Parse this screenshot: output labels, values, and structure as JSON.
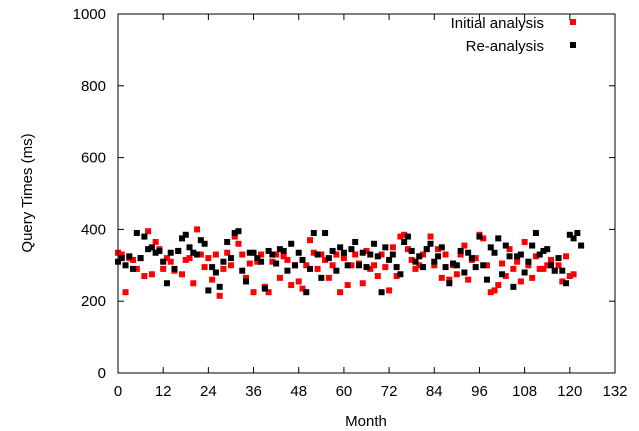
{
  "chart_data": {
    "type": "scatter",
    "xlabel": "Month",
    "ylabel": "Query Times (ms)",
    "xlim": [
      0,
      132
    ],
    "ylim": [
      0,
      1000
    ],
    "xticks": [
      "0",
      "12",
      "24",
      "36",
      "48",
      "60",
      "72",
      "84",
      "96",
      "108",
      "120",
      "132"
    ],
    "yticks": [
      "0",
      "200",
      "400",
      "600",
      "800",
      "1000"
    ],
    "legend_position": "top-right",
    "grid": false,
    "series": [
      {
        "name": "Initial analysis",
        "color": "#ff0000",
        "points": [
          [
            0,
            335
          ],
          [
            1,
            330
          ],
          [
            2,
            225
          ],
          [
            3,
            320
          ],
          [
            4,
            315
          ],
          [
            5,
            290
          ],
          [
            6,
            320
          ],
          [
            7,
            270
          ],
          [
            8,
            395
          ],
          [
            9,
            275
          ],
          [
            10,
            365
          ],
          [
            11,
            345
          ],
          [
            12,
            290
          ],
          [
            13,
            320
          ],
          [
            14,
            310
          ],
          [
            15,
            285
          ],
          [
            16,
            340
          ],
          [
            17,
            275
          ],
          [
            18,
            315
          ],
          [
            19,
            320
          ],
          [
            20,
            250
          ],
          [
            21,
            400
          ],
          [
            22,
            330
          ],
          [
            23,
            295
          ],
          [
            24,
            320
          ],
          [
            25,
            260
          ],
          [
            26,
            330
          ],
          [
            27,
            215
          ],
          [
            28,
            290
          ],
          [
            29,
            335
          ],
          [
            30,
            300
          ],
          [
            31,
            380
          ],
          [
            32,
            360
          ],
          [
            33,
            330
          ],
          [
            34,
            265
          ],
          [
            35,
            305
          ],
          [
            36,
            225
          ],
          [
            37,
            310
          ],
          [
            38,
            330
          ],
          [
            39,
            240
          ],
          [
            40,
            225
          ],
          [
            41,
            310
          ],
          [
            42,
            330
          ],
          [
            43,
            265
          ],
          [
            44,
            325
          ],
          [
            45,
            315
          ],
          [
            46,
            245
          ],
          [
            47,
            300
          ],
          [
            48,
            255
          ],
          [
            49,
            235
          ],
          [
            50,
            300
          ],
          [
            51,
            370
          ],
          [
            52,
            335
          ],
          [
            53,
            290
          ],
          [
            54,
            330
          ],
          [
            55,
            315
          ],
          [
            56,
            265
          ],
          [
            57,
            300
          ],
          [
            58,
            330
          ],
          [
            59,
            225
          ],
          [
            60,
            320
          ],
          [
            61,
            245
          ],
          [
            62,
            300
          ],
          [
            63,
            330
          ],
          [
            64,
            305
          ],
          [
            65,
            250
          ],
          [
            66,
            340
          ],
          [
            67,
            290
          ],
          [
            68,
            300
          ],
          [
            69,
            270
          ],
          [
            70,
            330
          ],
          [
            71,
            295
          ],
          [
            72,
            230
          ],
          [
            73,
            350
          ],
          [
            74,
            270
          ],
          [
            75,
            380
          ],
          [
            76,
            385
          ],
          [
            77,
            345
          ],
          [
            78,
            315
          ],
          [
            79,
            290
          ],
          [
            80,
            300
          ],
          [
            81,
            330
          ],
          [
            82,
            345
          ],
          [
            83,
            380
          ],
          [
            84,
            300
          ],
          [
            85,
            345
          ],
          [
            86,
            265
          ],
          [
            87,
            330
          ],
          [
            88,
            260
          ],
          [
            89,
            300
          ],
          [
            90,
            275
          ],
          [
            91,
            330
          ],
          [
            92,
            355
          ],
          [
            93,
            260
          ],
          [
            94,
            315
          ],
          [
            95,
            320
          ],
          [
            96,
            385
          ],
          [
            97,
            375
          ],
          [
            98,
            300
          ],
          [
            99,
            225
          ],
          [
            100,
            230
          ],
          [
            101,
            245
          ],
          [
            102,
            305
          ],
          [
            103,
            270
          ],
          [
            104,
            345
          ],
          [
            105,
            290
          ],
          [
            106,
            310
          ],
          [
            107,
            255
          ],
          [
            108,
            365
          ],
          [
            109,
            300
          ],
          [
            110,
            265
          ],
          [
            111,
            325
          ],
          [
            112,
            290
          ],
          [
            113,
            290
          ],
          [
            114,
            300
          ],
          [
            115,
            315
          ],
          [
            116,
            285
          ],
          [
            117,
            300
          ],
          [
            118,
            255
          ],
          [
            119,
            325
          ],
          [
            120,
            270
          ],
          [
            121,
            275
          ]
        ]
      },
      {
        "name": "Re-analysis",
        "color": "#000000",
        "points": [
          [
            0,
            310
          ],
          [
            1,
            320
          ],
          [
            2,
            300
          ],
          [
            3,
            325
          ],
          [
            4,
            290
          ],
          [
            5,
            390
          ],
          [
            6,
            320
          ],
          [
            7,
            380
          ],
          [
            8,
            345
          ],
          [
            9,
            350
          ],
          [
            10,
            335
          ],
          [
            11,
            340
          ],
          [
            12,
            310
          ],
          [
            13,
            250
          ],
          [
            14,
            335
          ],
          [
            15,
            290
          ],
          [
            16,
            340
          ],
          [
            17,
            375
          ],
          [
            18,
            385
          ],
          [
            19,
            350
          ],
          [
            20,
            335
          ],
          [
            21,
            330
          ],
          [
            22,
            370
          ],
          [
            23,
            360
          ],
          [
            24,
            230
          ],
          [
            25,
            295
          ],
          [
            26,
            280
          ],
          [
            27,
            240
          ],
          [
            28,
            310
          ],
          [
            29,
            365
          ],
          [
            30,
            320
          ],
          [
            31,
            390
          ],
          [
            32,
            395
          ],
          [
            33,
            285
          ],
          [
            34,
            255
          ],
          [
            35,
            335
          ],
          [
            36,
            335
          ],
          [
            37,
            320
          ],
          [
            38,
            310
          ],
          [
            39,
            235
          ],
          [
            40,
            340
          ],
          [
            41,
            330
          ],
          [
            42,
            305
          ],
          [
            43,
            345
          ],
          [
            44,
            340
          ],
          [
            45,
            285
          ],
          [
            46,
            360
          ],
          [
            47,
            300
          ],
          [
            48,
            335
          ],
          [
            49,
            315
          ],
          [
            50,
            225
          ],
          [
            51,
            290
          ],
          [
            52,
            390
          ],
          [
            53,
            330
          ],
          [
            54,
            265
          ],
          [
            55,
            390
          ],
          [
            56,
            320
          ],
          [
            57,
            340
          ],
          [
            58,
            285
          ],
          [
            59,
            350
          ],
          [
            60,
            335
          ],
          [
            61,
            300
          ],
          [
            62,
            345
          ],
          [
            63,
            365
          ],
          [
            64,
            300
          ],
          [
            65,
            335
          ],
          [
            66,
            295
          ],
          [
            67,
            330
          ],
          [
            68,
            360
          ],
          [
            69,
            325
          ],
          [
            70,
            225
          ],
          [
            71,
            350
          ],
          [
            72,
            315
          ],
          [
            73,
            330
          ],
          [
            74,
            295
          ],
          [
            75,
            275
          ],
          [
            76,
            365
          ],
          [
            77,
            380
          ],
          [
            78,
            340
          ],
          [
            79,
            310
          ],
          [
            80,
            325
          ],
          [
            81,
            295
          ],
          [
            82,
            345
          ],
          [
            83,
            360
          ],
          [
            84,
            310
          ],
          [
            85,
            325
          ],
          [
            86,
            350
          ],
          [
            87,
            295
          ],
          [
            88,
            250
          ],
          [
            89,
            305
          ],
          [
            90,
            300
          ],
          [
            91,
            340
          ],
          [
            92,
            280
          ],
          [
            93,
            335
          ],
          [
            94,
            320
          ],
          [
            95,
            295
          ],
          [
            96,
            380
          ],
          [
            97,
            300
          ],
          [
            98,
            260
          ],
          [
            99,
            350
          ],
          [
            100,
            335
          ],
          [
            101,
            375
          ],
          [
            102,
            275
          ],
          [
            103,
            355
          ],
          [
            104,
            325
          ],
          [
            105,
            240
          ],
          [
            106,
            325
          ],
          [
            107,
            330
          ],
          [
            108,
            280
          ],
          [
            109,
            310
          ],
          [
            110,
            355
          ],
          [
            111,
            390
          ],
          [
            112,
            330
          ],
          [
            113,
            340
          ],
          [
            114,
            345
          ],
          [
            115,
            300
          ],
          [
            116,
            285
          ],
          [
            117,
            320
          ],
          [
            118,
            285
          ],
          [
            119,
            250
          ],
          [
            120,
            385
          ],
          [
            121,
            375
          ],
          [
            122,
            390
          ],
          [
            123,
            355
          ]
        ]
      }
    ]
  }
}
